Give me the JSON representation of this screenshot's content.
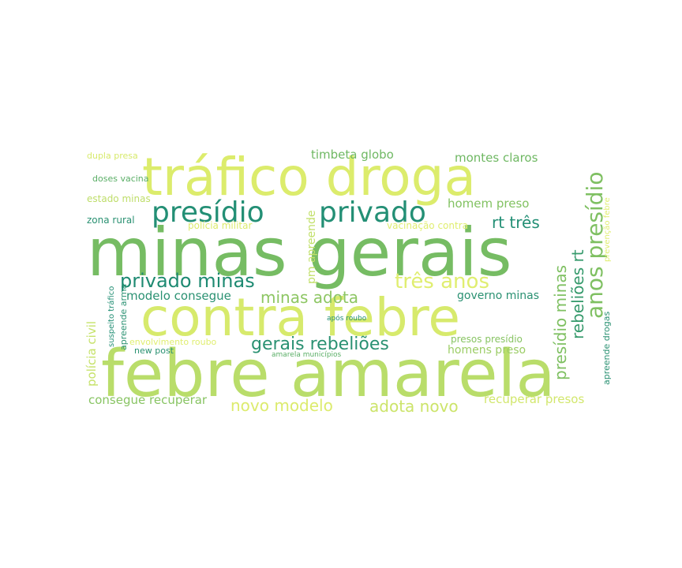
{
  "words": [
    {
      "text": "febre amarela",
      "color": "#b9dd6a"
    },
    {
      "text": "minas gerais",
      "color": "#76bc63"
    },
    {
      "text": "contra febre",
      "color": "#d7ea6c"
    },
    {
      "text": "tráfico droga",
      "color": "#dcec6c"
    },
    {
      "text": "presídio",
      "color": "#238f75"
    },
    {
      "text": "privado",
      "color": "#238f75"
    },
    {
      "text": "privado minas",
      "color": "#1e8a72"
    },
    {
      "text": "três anos",
      "color": "#e0ee70"
    },
    {
      "text": "gerais rebeliões",
      "color": "#2a9172"
    },
    {
      "text": "anos presídio",
      "color": "#7fc062"
    },
    {
      "text": "rebeliões rt",
      "color": "#369a6c"
    },
    {
      "text": "presídio minas",
      "color": "#7fc062"
    },
    {
      "text": "rt três",
      "color": "#238f75"
    },
    {
      "text": "minas adota",
      "color": "#8dc663"
    },
    {
      "text": "modelo consegue",
      "color": "#2a9172"
    },
    {
      "text": "novo modelo",
      "color": "#dceb6d"
    },
    {
      "text": "adota novo",
      "color": "#cce46a"
    },
    {
      "text": "consegue recuperar",
      "color": "#88c463"
    },
    {
      "text": "recuperar presos",
      "color": "#d2e76d"
    },
    {
      "text": "timbeta globo",
      "color": "#6fb863"
    },
    {
      "text": "montes claros",
      "color": "#6fb863"
    },
    {
      "text": "homem preso",
      "color": "#82c262"
    },
    {
      "text": "governo minas",
      "color": "#2a9172"
    },
    {
      "text": "homens preso",
      "color": "#9ccd66"
    },
    {
      "text": "presos presídio",
      "color": "#88c463"
    },
    {
      "text": "pm apreende",
      "color": "#c2e06a"
    },
    {
      "text": "polícia civil",
      "color": "#c6e26a"
    },
    {
      "text": "dupla presa",
      "color": "#d7ea6c"
    },
    {
      "text": "doses vacina",
      "color": "#5aae66"
    },
    {
      "text": "estado minas",
      "color": "#bedd69"
    },
    {
      "text": "zona rural",
      "color": "#2a9172"
    },
    {
      "text": "polícia militar",
      "color": "#dceb6d"
    },
    {
      "text": "vacinação contra",
      "color": "#e0ee70"
    },
    {
      "text": "prevenção febre",
      "color": "#e0ee70"
    },
    {
      "text": "apreende drogas",
      "color": "#2a9172"
    },
    {
      "text": "apreende arma",
      "color": "#2a9172"
    },
    {
      "text": "suspeito tráfico",
      "color": "#238f75"
    },
    {
      "text": "envolvimento roubo",
      "color": "#e0ee70"
    },
    {
      "text": "new post",
      "color": "#2a9172"
    },
    {
      "text": "após roubo",
      "color": "#238f75"
    },
    {
      "text": "amarela municípios",
      "color": "#5aae66"
    }
  ]
}
